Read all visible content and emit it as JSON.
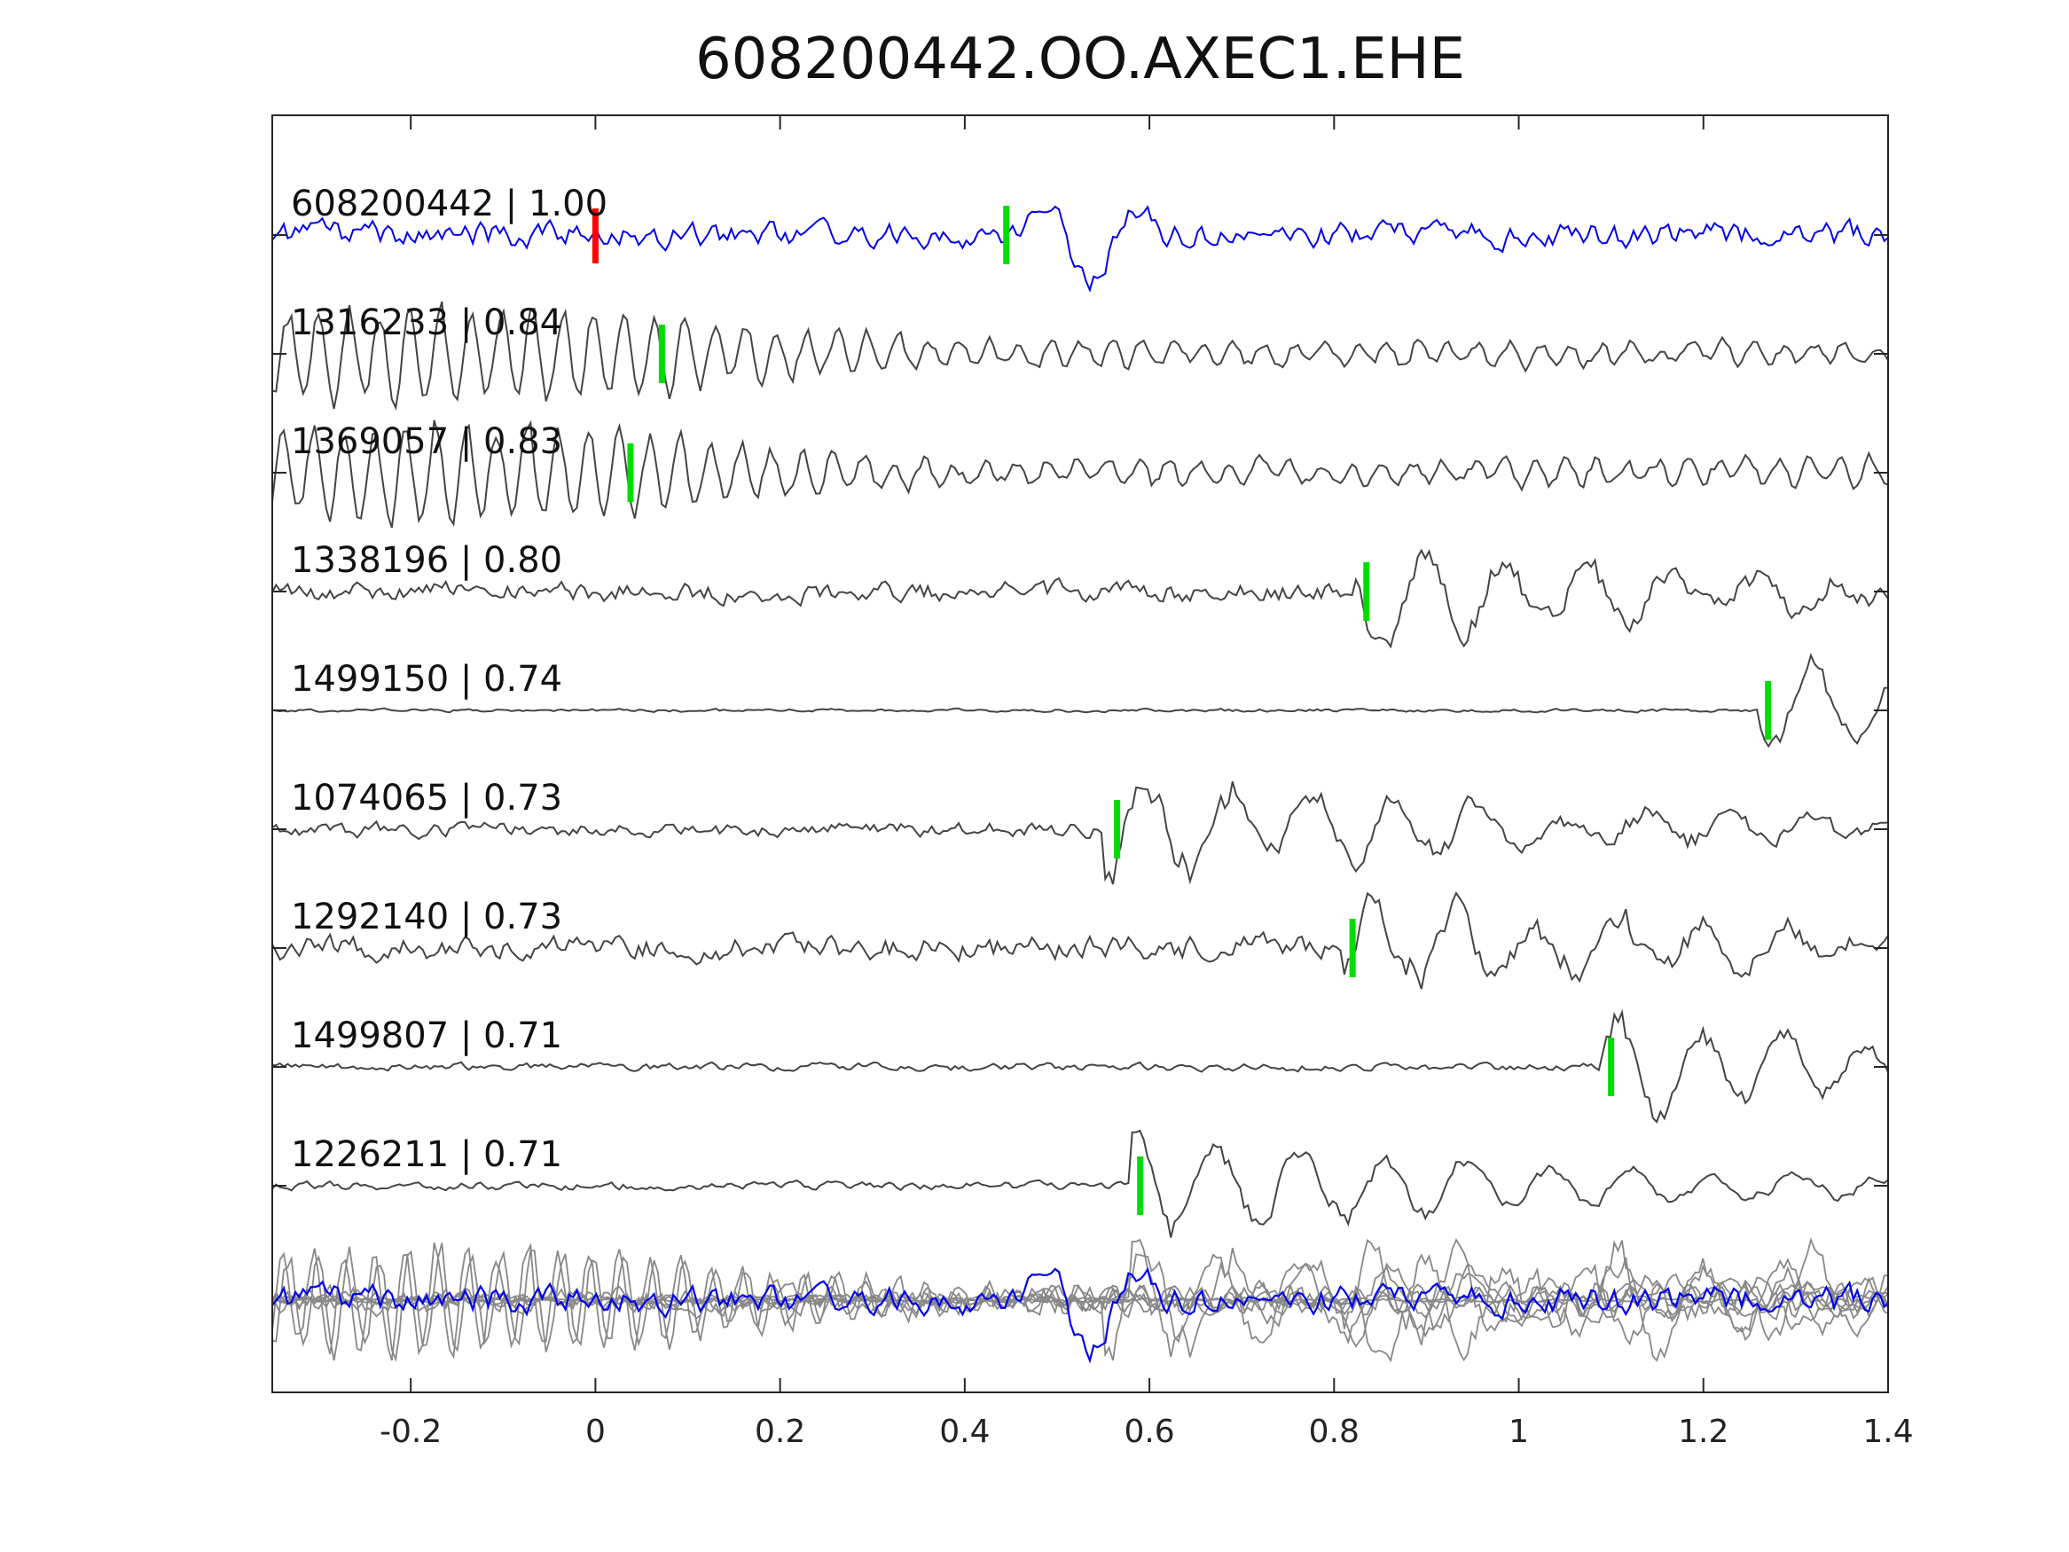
{
  "chart_data": {
    "type": "line",
    "title": "608200442.OO.AXEC1.EHE",
    "xlabel": "",
    "ylabel": "",
    "xlim": [
      -0.35,
      1.4
    ],
    "xticks": [
      -0.2,
      0,
      0.2,
      0.4,
      0.6,
      0.8,
      1,
      1.2,
      1.4
    ],
    "xtick_labels": [
      "-0.2",
      "0",
      "0.2",
      "0.4",
      "0.6",
      "0.8",
      "1",
      "1.2",
      "1.4"
    ],
    "grid": false,
    "colors": {
      "template": "#0000ee",
      "neighbor": "#444444",
      "stack": "#888888",
      "reference_pick": "#ff0000",
      "pick": "#00dd00"
    },
    "traces": [
      {
        "label": "608200442 | 1.00",
        "id": "608200442",
        "cc": 1.0,
        "color": "template",
        "red_pick": 0.0,
        "green_pick": 0.445,
        "wave": {
          "type": "blue",
          "seed": 1,
          "amp": 0.22
        }
      },
      {
        "label": "1316233 | 0.84",
        "id": "1316233",
        "cc": 0.84,
        "color": "neighbor",
        "green_pick": 0.072,
        "wave": {
          "type": "early_burst",
          "seed": 2,
          "amp": 0.45,
          "end": 0.02
        }
      },
      {
        "label": "1369057 | 0.83",
        "id": "1369057",
        "cc": 0.83,
        "color": "neighbor",
        "green_pick": 0.038,
        "wave": {
          "type": "early_burst",
          "seed": 3,
          "amp": 0.55,
          "end": 0.0
        }
      },
      {
        "label": "1338196 | 0.80",
        "id": "1338196",
        "cc": 0.8,
        "color": "neighbor",
        "green_pick": 0.835,
        "wave": {
          "type": "event",
          "seed": 4,
          "amp": 0.45,
          "noise": 0.22,
          "event": 0.84
        }
      },
      {
        "label": "1499150 | 0.74",
        "id": "1499150",
        "cc": 0.74,
        "color": "neighbor",
        "green_pick": 1.27,
        "wave": {
          "type": "event",
          "seed": 5,
          "amp": 0.5,
          "noise": 0.04,
          "event": 1.28
        }
      },
      {
        "label": "1074065 | 0.73",
        "id": "1074065",
        "cc": 0.73,
        "color": "neighbor",
        "green_pick": 0.565,
        "wave": {
          "type": "event",
          "seed": 6,
          "amp": 0.5,
          "noise": 0.15,
          "event": 0.57
        }
      },
      {
        "label": "1292140 | 0.73",
        "id": "1292140",
        "cc": 0.73,
        "color": "neighbor",
        "green_pick": 0.82,
        "wave": {
          "type": "event",
          "seed": 7,
          "amp": 0.4,
          "noise": 0.3,
          "event": 0.83
        }
      },
      {
        "label": "1499807 | 0.71",
        "id": "1499807",
        "cc": 0.71,
        "color": "neighbor",
        "green_pick": 1.1,
        "wave": {
          "type": "event",
          "seed": 8,
          "amp": 0.35,
          "noise": 0.08,
          "event": 1.11
        }
      },
      {
        "label": "1226211 | 0.71",
        "id": "1226211",
        "cc": 0.71,
        "color": "neighbor",
        "green_pick": 0.59,
        "wave": {
          "type": "event",
          "seed": 9,
          "amp": 0.5,
          "noise": 0.08,
          "event": 0.6
        }
      }
    ],
    "stack": {
      "n_gray_traces": 8,
      "includes_template": true
    }
  }
}
